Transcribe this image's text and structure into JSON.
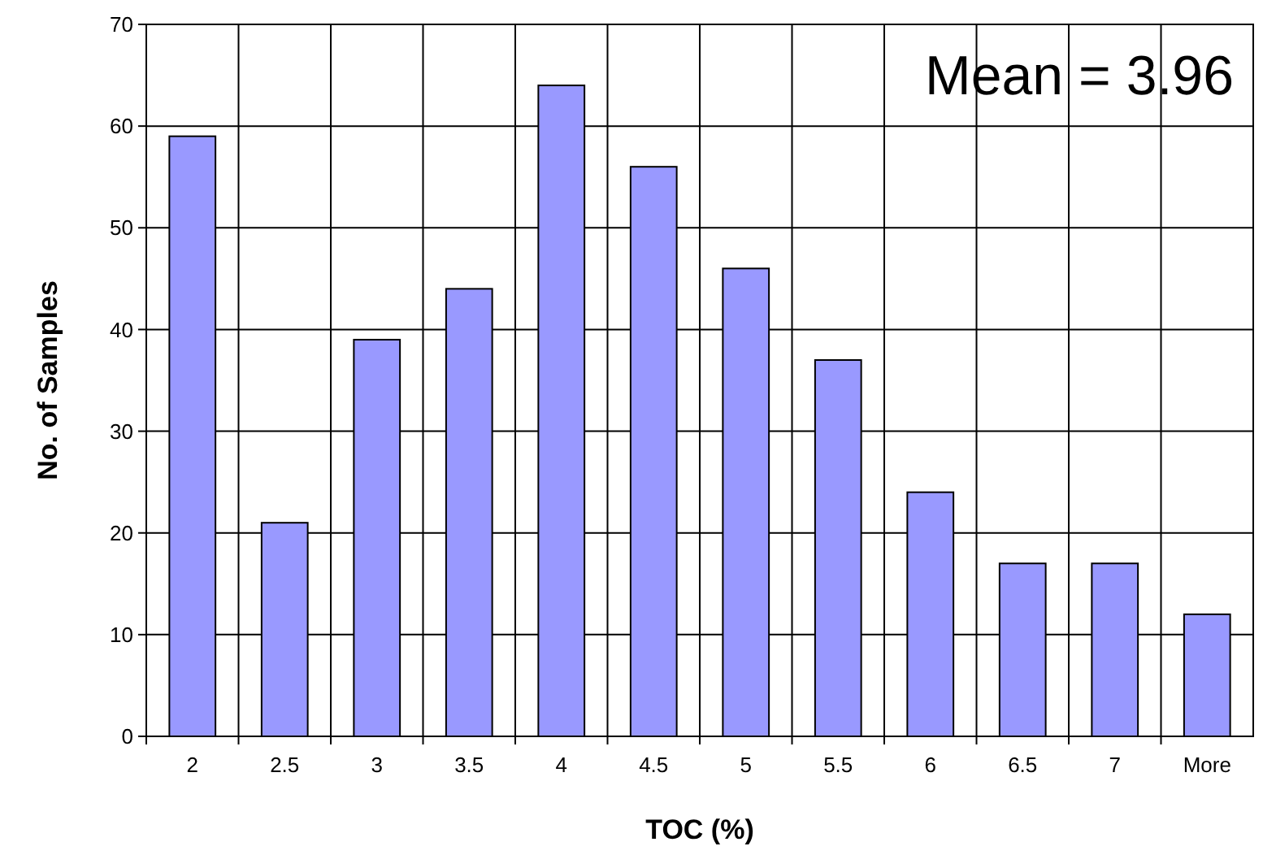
{
  "chart_data": {
    "type": "bar",
    "xlabel": "TOC (%)",
    "ylabel": "No. of Samples",
    "categories": [
      "2",
      "2.5",
      "3",
      "3.5",
      "4",
      "4.5",
      "5",
      "5.5",
      "6",
      "6.5",
      "7",
      "More"
    ],
    "values": [
      59,
      21,
      39,
      44,
      64,
      56,
      46,
      37,
      24,
      17,
      17,
      12
    ],
    "color": "#9999ff",
    "ylim": [
      0,
      70
    ],
    "yticks": [
      0,
      10,
      20,
      30,
      40,
      50,
      60,
      70
    ],
    "grid": true,
    "annotations": [
      "Mean = 3.96"
    ]
  }
}
